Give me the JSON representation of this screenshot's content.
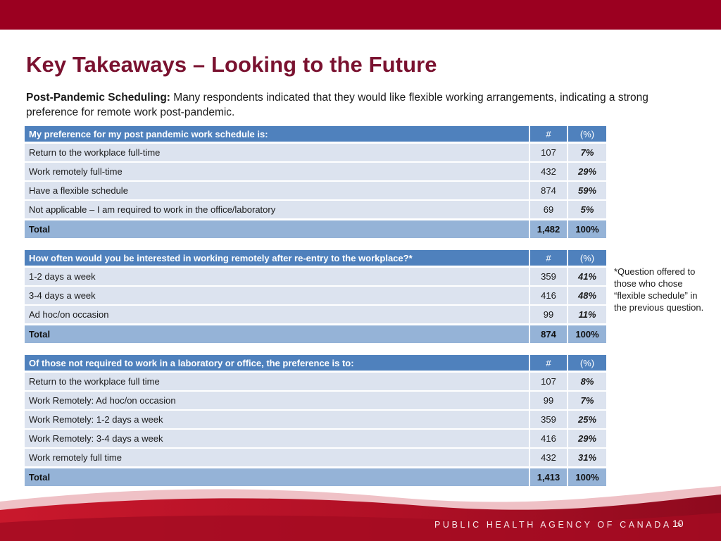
{
  "slide": {
    "title": "Key Takeaways – Looking to the Future",
    "intro_bold": "Post-Pandemic Scheduling:",
    "intro_text": " Many respondents indicated that they would like flexible working arrangements, indicating a strong preference for remote work post-pandemic.",
    "side_note": "*Question offered to those who chose “flexible schedule” in the previous question.",
    "agency": "PUBLIC HEALTH AGENCY OF CANADA >",
    "page_number": "10"
  },
  "colors": {
    "brand_red": "#9b0020",
    "title_color": "#7a1230",
    "header_blue": "#4f81bd",
    "row_blue": "#dce3ef",
    "total_blue": "#95b3d7"
  },
  "tables": [
    {
      "header": "My preference for my post pandemic work schedule is:",
      "num_label": "#",
      "pct_label": "(%)",
      "rows": [
        {
          "label": "Return to the workplace full-time",
          "num": "107",
          "pct": "7%"
        },
        {
          "label": "Work remotely full-time",
          "num": "432",
          "pct": "29%"
        },
        {
          "label": "Have a flexible schedule",
          "num": "874",
          "pct": "59%"
        },
        {
          "label": "Not applicable – I am required to work in the office/laboratory",
          "num": "69",
          "pct": "5%"
        }
      ],
      "total": {
        "label": "Total",
        "num": "1,482",
        "pct": "100%"
      }
    },
    {
      "header": "How often would you be interested in working remotely after re-entry to the workplace?*",
      "num_label": "#",
      "pct_label": "(%)",
      "rows": [
        {
          "label": "1-2 days a week",
          "num": "359",
          "pct": "41%"
        },
        {
          "label": "3-4 days a week",
          "num": "416",
          "pct": "48%"
        },
        {
          "label": "Ad hoc/on occasion",
          "num": "99",
          "pct": "11%"
        }
      ],
      "total": {
        "label": "Total",
        "num": "874",
        "pct": "100%"
      }
    },
    {
      "header": "Of those not required to work in a laboratory or office, the preference is to:",
      "num_label": "#",
      "pct_label": "(%)",
      "rows": [
        {
          "label": "Return to the workplace full time",
          "num": "107",
          "pct": "8%"
        },
        {
          "label": "Work Remotely: Ad hoc/on occasion",
          "num": "99",
          "pct": "7%"
        },
        {
          "label": "Work Remotely: 1-2 days a week",
          "num": "359",
          "pct": "25%"
        },
        {
          "label": "Work Remotely: 3-4 days a week",
          "num": "416",
          "pct": "29%"
        },
        {
          "label": "Work remotely full time",
          "num": "432",
          "pct": "31%"
        }
      ],
      "total": {
        "label": "Total",
        "num": "1,413",
        "pct": "100%"
      }
    }
  ]
}
